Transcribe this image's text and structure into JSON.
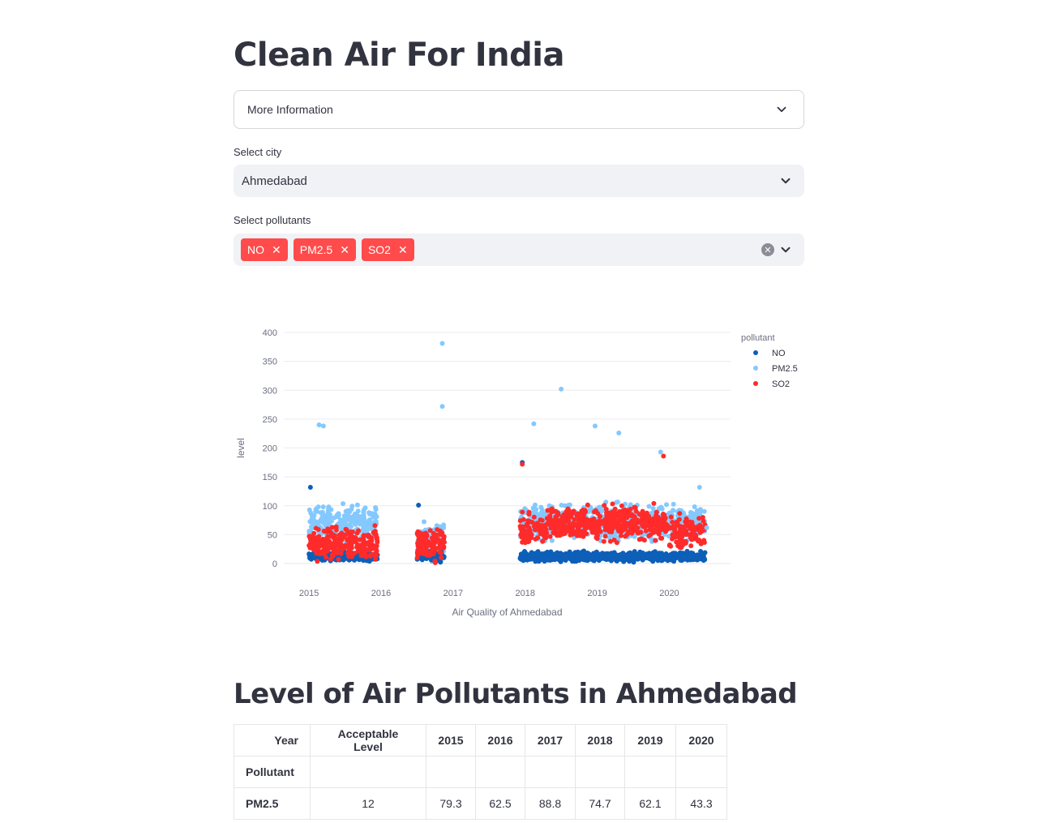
{
  "app": {
    "title": "Clean Air For India"
  },
  "expander": {
    "label": "More Information"
  },
  "city_select": {
    "label": "Select city",
    "value": "Ahmedabad"
  },
  "pollutant_select": {
    "label": "Select pollutants",
    "tags": [
      "NO",
      "PM2.5",
      "SO2"
    ],
    "tag_color": "#ff4b4b"
  },
  "chart_data": {
    "type": "scatter",
    "xlabel": "Air Quality of Ahmedabad",
    "ylabel": "level",
    "x_ticks": [
      "2015",
      "2016",
      "2017",
      "2018",
      "2019",
      "2020"
    ],
    "y_ticks": [
      0,
      50,
      100,
      150,
      200,
      250,
      300,
      350,
      400
    ],
    "ylim": [
      0,
      400
    ],
    "xlim": [
      2014.65,
      2020.85
    ],
    "grid": true,
    "legend_title": "pollutant",
    "legend_position": "right",
    "series": [
      {
        "name": "NO",
        "color": "#0d5fb8"
      },
      {
        "name": "PM2.5",
        "color": "#83c9ff"
      },
      {
        "name": "SO2",
        "color": "#ff2b2b"
      }
    ],
    "highlight_points": [
      {
        "series": "PM2.5",
        "x": 2016.85,
        "y": 381
      },
      {
        "series": "PM2.5",
        "x": 2016.85,
        "y": 272
      },
      {
        "series": "PM2.5",
        "x": 2018.5,
        "y": 302
      },
      {
        "series": "PM2.5",
        "x": 2015.14,
        "y": 240
      },
      {
        "series": "PM2.5",
        "x": 2015.2,
        "y": 238
      },
      {
        "series": "PM2.5",
        "x": 2018.12,
        "y": 242
      },
      {
        "series": "PM2.5",
        "x": 2018.97,
        "y": 238
      },
      {
        "series": "PM2.5",
        "x": 2019.3,
        "y": 226
      },
      {
        "series": "PM2.5",
        "x": 2019.88,
        "y": 193
      },
      {
        "series": "SO2",
        "x": 2019.92,
        "y": 186
      },
      {
        "series": "NO",
        "x": 2017.96,
        "y": 175
      },
      {
        "series": "SO2",
        "x": 2017.96,
        "y": 172
      },
      {
        "series": "NO",
        "x": 2015.02,
        "y": 132
      },
      {
        "series": "NO",
        "x": 2016.52,
        "y": 101
      },
      {
        "series": "PM2.5",
        "x": 2020.42,
        "y": 132
      },
      {
        "series": "PM2.5",
        "x": 2020.52,
        "y": 62
      }
    ]
  },
  "section": {
    "title": "Level of Air Pollutants in Ahmedabad"
  },
  "table": {
    "year_label": "Year",
    "pollutant_label": "Pollutant",
    "columns": [
      "Acceptable Level",
      "2015",
      "2016",
      "2017",
      "2018",
      "2019",
      "2020"
    ],
    "rows": [
      {
        "pollutant": "PM2.5",
        "values": [
          "12",
          "79.3",
          "62.5",
          "88.8",
          "74.7",
          "62.1",
          "43.3"
        ]
      }
    ]
  }
}
